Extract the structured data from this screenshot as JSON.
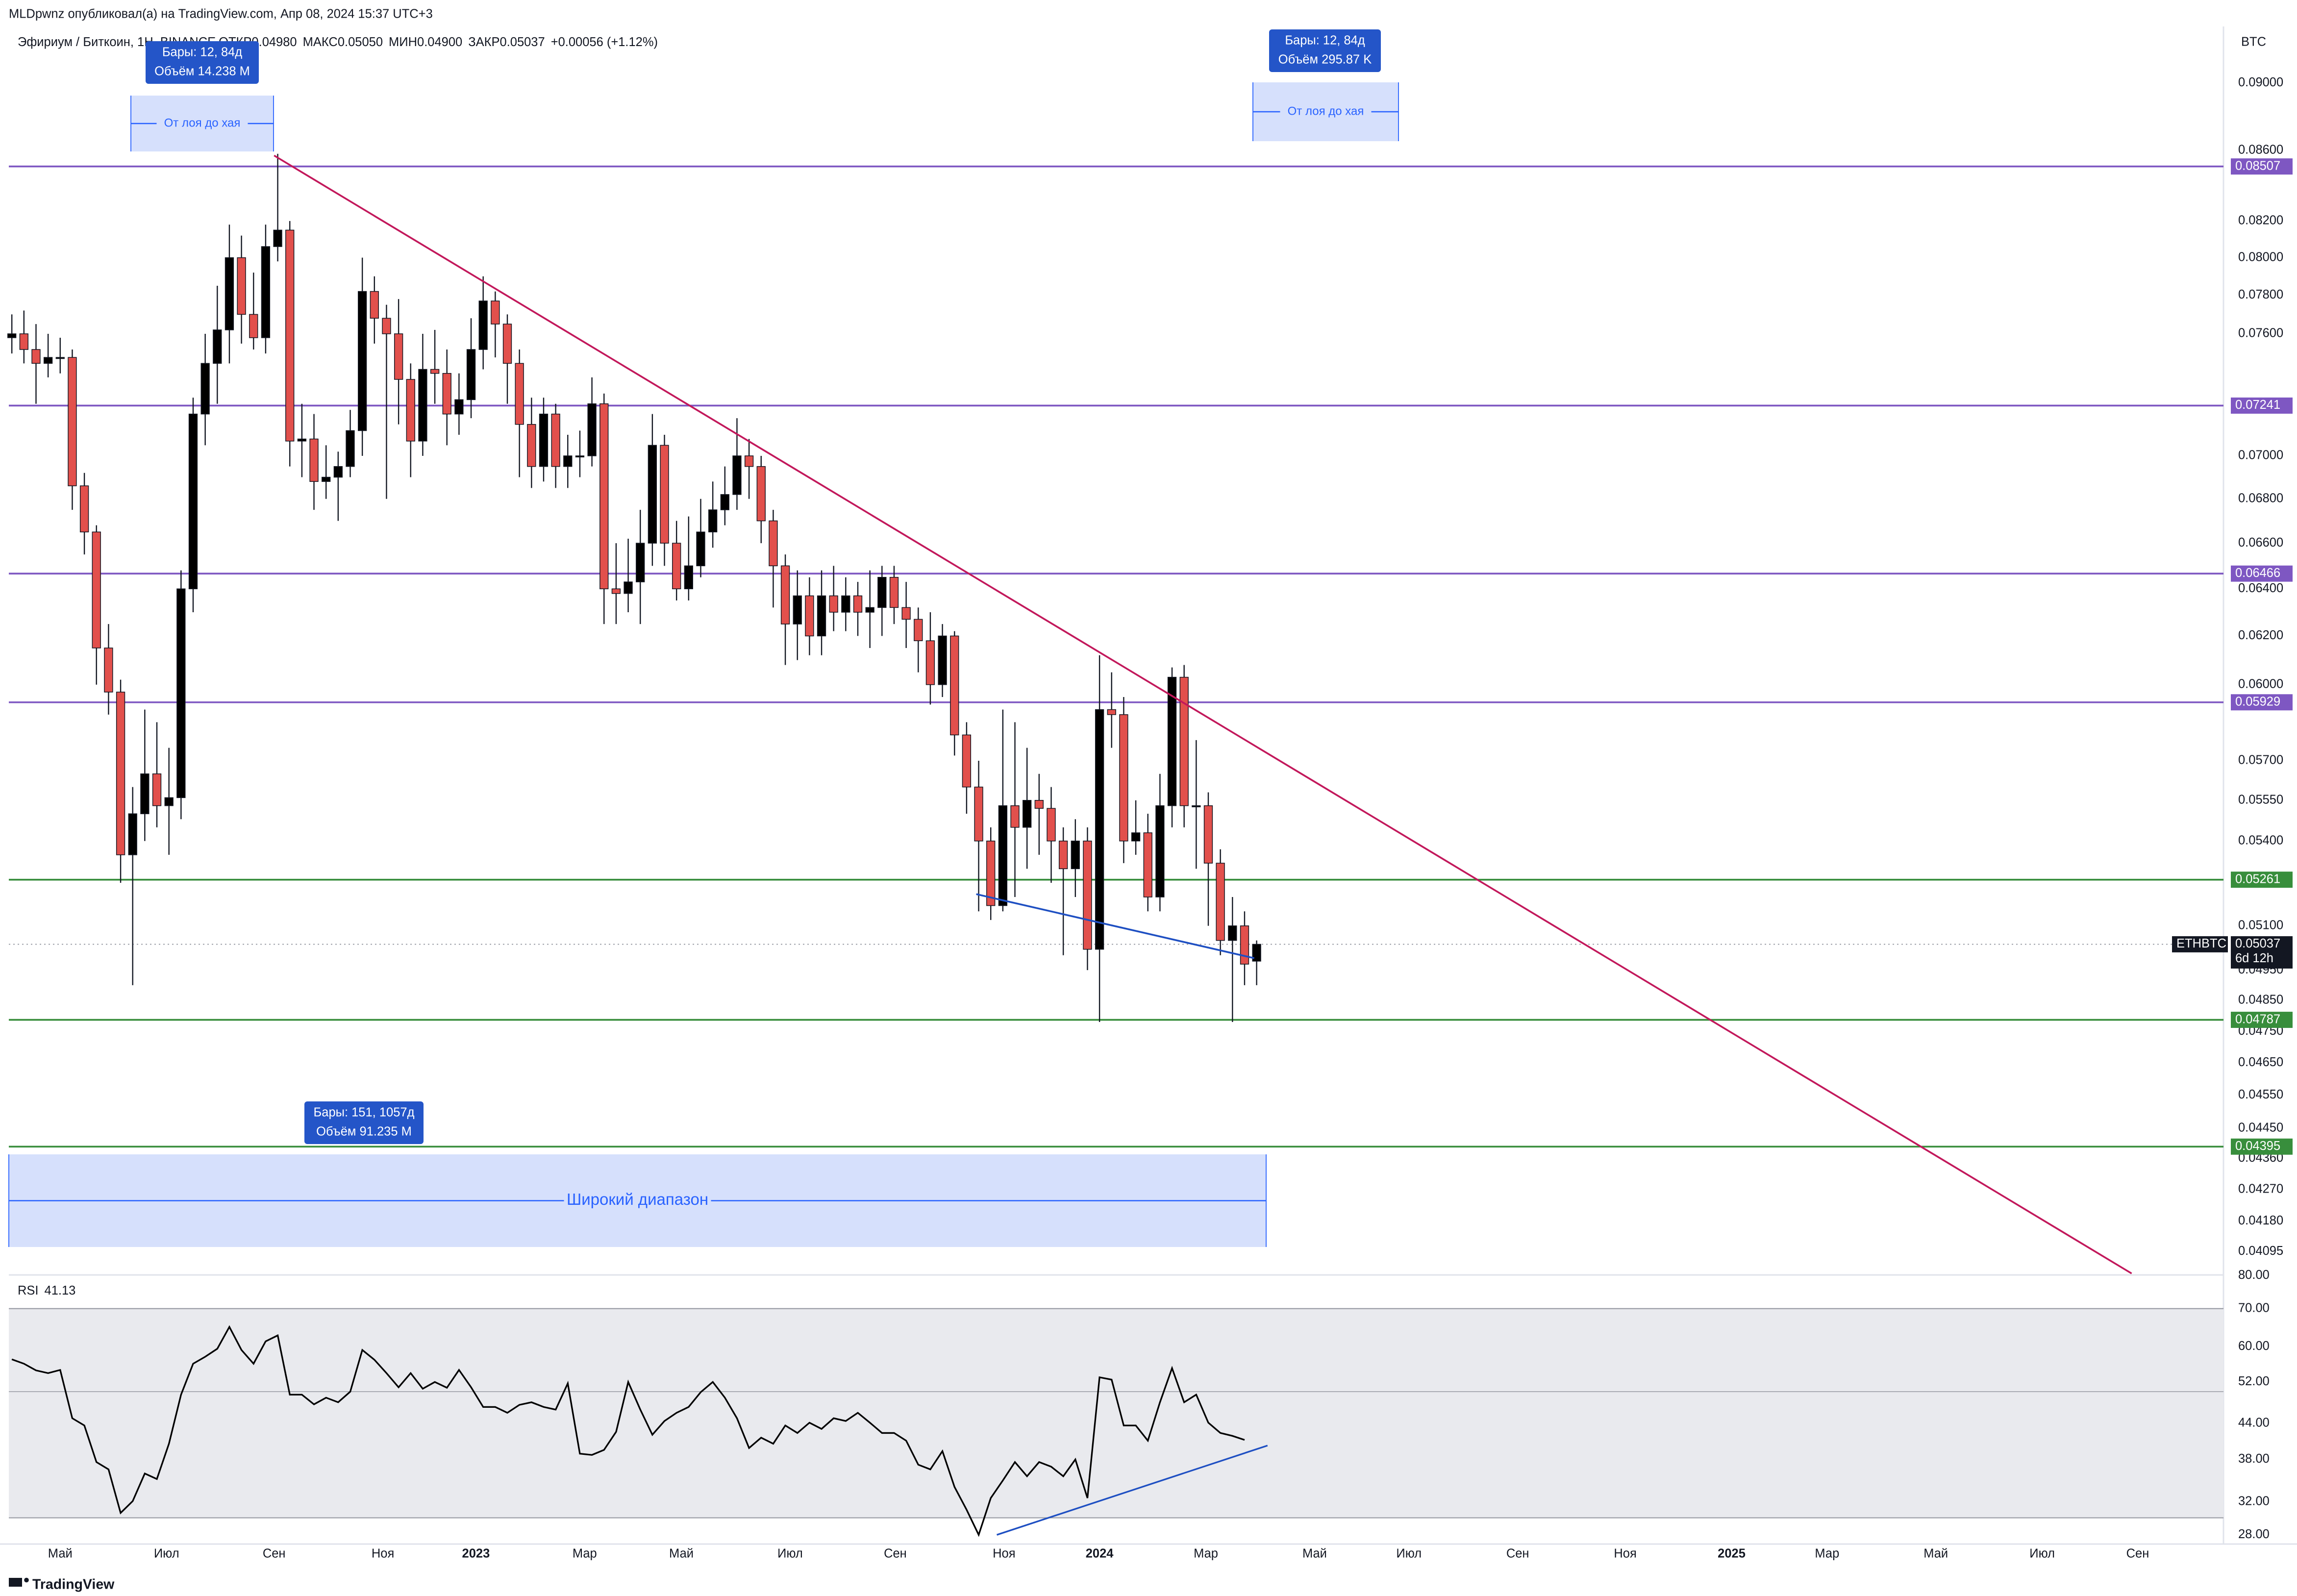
{
  "header": {
    "publisher": "MLDpwnz опубликовал(а) на TradingView.com, Апр 08, 2024 15:37 UTC+3",
    "brand": "TradingView"
  },
  "chart_data": [
    {
      "type": "candlestick",
      "symbol": "Эфириум / Биткоин, 1Н, BINANCE",
      "legend_items": [
        {
          "label": "ОТКР",
          "value": "0.04980"
        },
        {
          "label": "МАКС",
          "value": "0.05050"
        },
        {
          "label": "МИН",
          "value": "0.04900"
        },
        {
          "label": "ЗАКР",
          "value": "0.05037"
        }
      ],
      "change": "+0.00056 (+1.12%)",
      "currency": "BTC",
      "up_color": "#000000",
      "down_color": "#e2504c",
      "log_scale": true,
      "grid": false,
      "ylim": [
        0.04035,
        0.0933
      ],
      "yticks": [
        {
          "value": 0.09,
          "label": "0.09000"
        },
        {
          "value": 0.086,
          "label": "0.08600"
        },
        {
          "value": 0.082,
          "label": "0.08200"
        },
        {
          "value": 0.08,
          "label": "0.08000"
        },
        {
          "value": 0.078,
          "label": "0.07800"
        },
        {
          "value": 0.076,
          "label": "0.07600"
        },
        {
          "value": 0.07,
          "label": "0.07000"
        },
        {
          "value": 0.068,
          "label": "0.06800"
        },
        {
          "value": 0.066,
          "label": "0.06600"
        },
        {
          "value": 0.064,
          "label": "0.06400"
        },
        {
          "value": 0.062,
          "label": "0.06200"
        },
        {
          "value": 0.06,
          "label": "0.06000"
        },
        {
          "value": 0.057,
          "label": "0.05700"
        },
        {
          "value": 0.0555,
          "label": "0.05550"
        },
        {
          "value": 0.054,
          "label": "0.05400"
        },
        {
          "value": 0.051,
          "label": "0.05100"
        },
        {
          "value": 0.0495,
          "label": "0.04950"
        },
        {
          "value": 0.0485,
          "label": "0.04850"
        },
        {
          "value": 0.0475,
          "label": "0.04750"
        },
        {
          "value": 0.0465,
          "label": "0.04650"
        },
        {
          "value": 0.0455,
          "label": "0.04550"
        },
        {
          "value": 0.0445,
          "label": "0.04450"
        },
        {
          "value": 0.0436,
          "label": "0.04360"
        },
        {
          "value": 0.0427,
          "label": "0.04270"
        },
        {
          "value": 0.0418,
          "label": "0.04180"
        },
        {
          "value": 0.04095,
          "label": "0.04095"
        }
      ],
      "xlim": [
        -0.25,
        183
      ],
      "xticks": [
        {
          "value": 4.0,
          "label": "Май"
        },
        {
          "value": 12.8,
          "label": "Июл"
        },
        {
          "value": 21.7,
          "label": "Сен"
        },
        {
          "value": 30.7,
          "label": "Ноя"
        },
        {
          "value": 38.4,
          "label": "2023"
        },
        {
          "value": 47.4,
          "label": "Мар"
        },
        {
          "value": 55.4,
          "label": "Май"
        },
        {
          "value": 64.4,
          "label": "Июл"
        },
        {
          "value": 73.1,
          "label": "Сен"
        },
        {
          "value": 82.1,
          "label": "Ноя"
        },
        {
          "value": 90.0,
          "label": "2024"
        },
        {
          "value": 98.8,
          "label": "Мар"
        },
        {
          "value": 107.8,
          "label": "Май"
        },
        {
          "value": 115.6,
          "label": "Июл"
        },
        {
          "value": 124.6,
          "label": "Сен"
        },
        {
          "value": 133.5,
          "label": "Ноя"
        },
        {
          "value": 142.3,
          "label": "2025"
        },
        {
          "value": 150.2,
          "label": "Мар"
        },
        {
          "value": 159.2,
          "label": "Май"
        },
        {
          "value": 168.0,
          "label": "Июл"
        },
        {
          "value": 175.9,
          "label": "Сен"
        }
      ],
      "open": [
        0.0758,
        0.076,
        0.0752,
        0.0745,
        0.0748,
        0.0748,
        0.0686,
        0.0665,
        0.0615,
        0.0597,
        0.0535,
        0.055,
        0.0565,
        0.0553,
        0.0556,
        0.064,
        0.072,
        0.0745,
        0.0762,
        0.08,
        0.077,
        0.0758,
        0.0806,
        0.0815,
        0.0707,
        0.0708,
        0.0688,
        0.069,
        0.0695,
        0.0712,
        0.0782,
        0.0768,
        0.076,
        0.0737,
        0.0707,
        0.0742,
        0.074,
        0.072,
        0.0727,
        0.0752,
        0.0777,
        0.0765,
        0.0745,
        0.0715,
        0.0695,
        0.072,
        0.0695,
        0.07,
        0.07,
        0.0725,
        0.064,
        0.0638,
        0.0643,
        0.066,
        0.0705,
        0.066,
        0.064,
        0.065,
        0.0665,
        0.0675,
        0.0682,
        0.07,
        0.0695,
        0.067,
        0.065,
        0.0625,
        0.0637,
        0.062,
        0.0637,
        0.063,
        0.0637,
        0.063,
        0.0632,
        0.0645,
        0.0632,
        0.0627,
        0.0618,
        0.06,
        0.062,
        0.058,
        0.056,
        0.054,
        0.0517,
        0.0553,
        0.0545,
        0.0555,
        0.0552,
        0.054,
        0.053,
        0.054,
        0.0502,
        0.059,
        0.0588,
        0.054,
        0.0543,
        0.052,
        0.0553,
        0.0603,
        0.0553,
        0.0553,
        0.0532,
        0.0505,
        0.051,
        0.0498
      ],
      "high": [
        0.077,
        0.0772,
        0.0765,
        0.076,
        0.0758,
        0.0752,
        0.0692,
        0.0668,
        0.0625,
        0.0602,
        0.056,
        0.059,
        0.0585,
        0.0575,
        0.0648,
        0.0728,
        0.076,
        0.0785,
        0.0818,
        0.0812,
        0.0792,
        0.0818,
        0.0858,
        0.082,
        0.0725,
        0.072,
        0.0705,
        0.0702,
        0.0722,
        0.08,
        0.079,
        0.0775,
        0.0778,
        0.0745,
        0.076,
        0.0762,
        0.0752,
        0.074,
        0.0768,
        0.079,
        0.0782,
        0.077,
        0.0752,
        0.0728,
        0.0728,
        0.0725,
        0.071,
        0.0712,
        0.0738,
        0.073,
        0.066,
        0.0662,
        0.0675,
        0.072,
        0.071,
        0.067,
        0.0672,
        0.068,
        0.0688,
        0.0695,
        0.0718,
        0.0708,
        0.07,
        0.0675,
        0.0655,
        0.0648,
        0.0645,
        0.0648,
        0.065,
        0.0645,
        0.0643,
        0.0648,
        0.065,
        0.065,
        0.0643,
        0.0632,
        0.063,
        0.0625,
        0.0622,
        0.0585,
        0.057,
        0.0545,
        0.059,
        0.0585,
        0.0575,
        0.0565,
        0.056,
        0.0545,
        0.0548,
        0.0545,
        0.0612,
        0.0605,
        0.0595,
        0.0555,
        0.055,
        0.0565,
        0.0607,
        0.0608,
        0.0578,
        0.0558,
        0.0537,
        0.052,
        0.0515,
        0.0505
      ],
      "low": [
        0.075,
        0.0745,
        0.0725,
        0.0738,
        0.074,
        0.0675,
        0.0655,
        0.06,
        0.0588,
        0.0525,
        0.049,
        0.054,
        0.0545,
        0.0535,
        0.0548,
        0.063,
        0.0705,
        0.0725,
        0.0745,
        0.0755,
        0.0752,
        0.075,
        0.0798,
        0.0695,
        0.069,
        0.0675,
        0.068,
        0.067,
        0.069,
        0.07,
        0.0755,
        0.068,
        0.0715,
        0.069,
        0.07,
        0.0725,
        0.0705,
        0.071,
        0.0718,
        0.0742,
        0.0748,
        0.0725,
        0.069,
        0.0685,
        0.0688,
        0.0685,
        0.0685,
        0.069,
        0.0695,
        0.0625,
        0.0625,
        0.063,
        0.0625,
        0.065,
        0.065,
        0.0635,
        0.0635,
        0.0645,
        0.0658,
        0.0668,
        0.0675,
        0.068,
        0.066,
        0.0632,
        0.0608,
        0.061,
        0.0612,
        0.0612,
        0.0622,
        0.0622,
        0.062,
        0.0615,
        0.062,
        0.0625,
        0.0615,
        0.0605,
        0.0592,
        0.0595,
        0.0572,
        0.055,
        0.0515,
        0.0512,
        0.0515,
        0.052,
        0.053,
        0.0535,
        0.0525,
        0.05,
        0.052,
        0.0495,
        0.0478,
        0.0575,
        0.0532,
        0.0535,
        0.0515,
        0.0515,
        0.0545,
        0.0545,
        0.053,
        0.051,
        0.05,
        0.0478,
        0.049,
        0.049
      ],
      "close": [
        0.076,
        0.0752,
        0.0745,
        0.0748,
        0.0748,
        0.0686,
        0.0665,
        0.0615,
        0.0597,
        0.0535,
        0.055,
        0.0565,
        0.0553,
        0.0556,
        0.064,
        0.072,
        0.0745,
        0.0762,
        0.08,
        0.077,
        0.0758,
        0.0806,
        0.0815,
        0.0707,
        0.0708,
        0.0688,
        0.069,
        0.0695,
        0.0712,
        0.0782,
        0.0768,
        0.076,
        0.0737,
        0.0707,
        0.0742,
        0.074,
        0.072,
        0.0727,
        0.0752,
        0.0777,
        0.0765,
        0.0745,
        0.0715,
        0.0695,
        0.072,
        0.0695,
        0.07,
        0.07,
        0.0725,
        0.064,
        0.0638,
        0.0643,
        0.066,
        0.0705,
        0.066,
        0.064,
        0.065,
        0.0665,
        0.0675,
        0.0682,
        0.07,
        0.0695,
        0.067,
        0.065,
        0.0625,
        0.0637,
        0.062,
        0.0637,
        0.063,
        0.0637,
        0.063,
        0.0632,
        0.0645,
        0.0632,
        0.0627,
        0.0618,
        0.06,
        0.062,
        0.058,
        0.056,
        0.054,
        0.0517,
        0.0553,
        0.0545,
        0.0555,
        0.0552,
        0.054,
        0.053,
        0.054,
        0.0502,
        0.059,
        0.0588,
        0.054,
        0.0543,
        0.052,
        0.0553,
        0.0603,
        0.0553,
        0.0553,
        0.0532,
        0.0505,
        0.051,
        0.0497,
        0.05037
      ],
      "levels": [
        {
          "value": 0.08507,
          "color": "#7e57c2"
        },
        {
          "value": 0.07241,
          "color": "#7e57c2"
        },
        {
          "value": 0.06466,
          "color": "#7e57c2"
        },
        {
          "value": 0.05929,
          "color": "#7e57c2"
        },
        {
          "value": 0.05261,
          "color": "#388e3c"
        },
        {
          "value": 0.04787,
          "color": "#388e3c"
        },
        {
          "value": 0.04395,
          "color": "#388e3c"
        }
      ],
      "last_price": {
        "ticker": "ETHBTC",
        "value": 0.05037,
        "countdown": "6d 12h"
      },
      "trend_lines": [
        {
          "x": [
            21.7,
            175.4
          ],
          "y": [
            0.0857,
            0.04035
          ],
          "color": "#c2185b"
        },
        {
          "x": [
            79.8,
            102.8
          ],
          "y": [
            0.0521,
            0.0499
          ],
          "color": "#1e4fc2"
        }
      ],
      "annotations": [
        {
          "bars": "Бары: 12, 84д",
          "volume": "Объём 14.238 M",
          "label": "От лоя до хая"
        },
        {
          "bars": "Бары: 12, 84д",
          "volume": "Объём 295.87 K",
          "label": "От лоя до хая"
        },
        {
          "bars": "Бары: 151, 1057д",
          "volume": "Объём 91.235 M",
          "label": "Широкий диапазон"
        }
      ]
    },
    {
      "type": "line",
      "title": "RSI",
      "value_label": "41.13",
      "color": "#000000",
      "log_scale": true,
      "ylim": [
        27.3,
        80.7
      ],
      "yticks": [
        {
          "value": 80,
          "label": "80.00"
        },
        {
          "value": 70,
          "label": "70.00"
        },
        {
          "value": 60,
          "label": "60.00"
        },
        {
          "value": 52,
          "label": "52.00"
        },
        {
          "value": 44,
          "label": "44.00"
        },
        {
          "value": 38,
          "label": "38.00"
        },
        {
          "value": 32,
          "label": "32.00"
        },
        {
          "value": 28,
          "label": "28.00"
        }
      ],
      "band": [
        30,
        70
      ],
      "midline": 50,
      "values": [
        57.0,
        56.0,
        54.5,
        53.9,
        54.6,
        44.9,
        43.6,
        37.6,
        36.5,
        30.6,
        32.1,
        35.9,
        35.1,
        40.5,
        49.4,
        56.0,
        57.6,
        59.5,
        65.0,
        59.2,
        56.0,
        61.3,
        62.8,
        49.4,
        49.4,
        47.5,
        48.8,
        47.9,
        50.0,
        59.2,
        56.9,
        53.9,
        50.9,
        53.9,
        50.6,
        52.0,
        50.8,
        54.6,
        50.9,
        47.0,
        47.0,
        45.9,
        47.4,
        47.9,
        47.0,
        46.5,
        51.7,
        38.9,
        38.7,
        39.5,
        42.5,
        52.0,
        46.5,
        42.0,
        44.4,
        45.9,
        47.0,
        49.9,
        52.0,
        48.8,
        44.9,
        39.8,
        41.5,
        40.5,
        43.6,
        42.3,
        44.1,
        43.0,
        44.9,
        44.4,
        45.9,
        44.1,
        42.3,
        42.3,
        41.0,
        37.2,
        36.5,
        39.3,
        34.0,
        31.0,
        28.0,
        32.5,
        34.9,
        37.6,
        35.5,
        37.6,
        36.9,
        35.5,
        38.0,
        32.5,
        53.0,
        52.5,
        43.6,
        43.6,
        41.0,
        47.9,
        55.0,
        47.9,
        49.4,
        44.1,
        42.3,
        41.8,
        41.13
      ],
      "trend_lines": [
        {
          "x": [
            81.5,
            103.9
          ],
          "y": [
            28,
            40.2
          ],
          "color": "#1e4fc2"
        }
      ]
    }
  ]
}
